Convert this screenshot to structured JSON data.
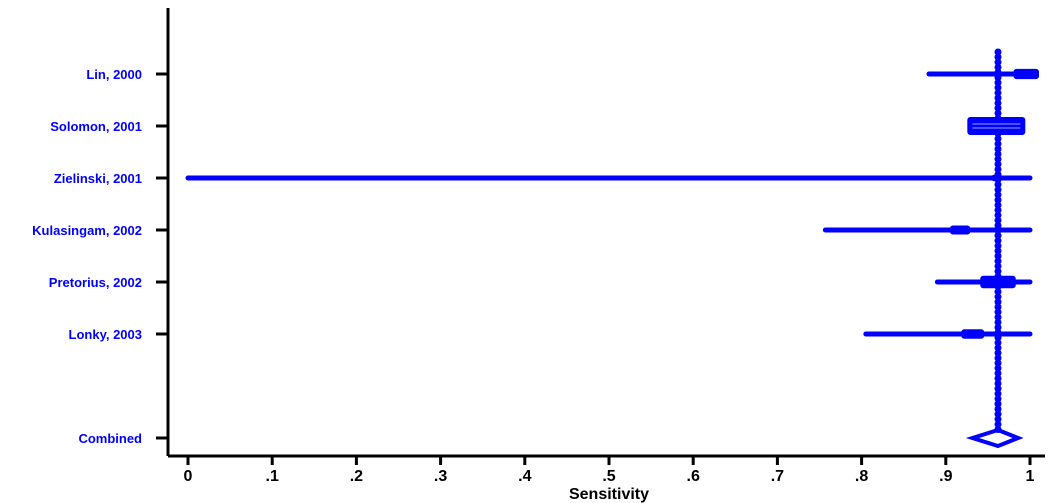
{
  "chart_data": {
    "type": "forest",
    "xlabel": "Sensitivity",
    "xlim": [
      0,
      1
    ],
    "x_ticks": [
      0,
      0.1,
      0.2,
      0.3,
      0.4,
      0.5,
      0.6,
      0.7,
      0.8,
      0.9,
      1
    ],
    "x_tick_labels": [
      "0",
      ".1",
      ".2",
      ".3",
      ".4",
      ".5",
      ".6",
      ".7",
      ".8",
      ".9",
      "1"
    ],
    "studies": [
      {
        "label": "Lin, 2000",
        "estimate": 1.0,
        "ci_low": 0.88,
        "ci_high": 1.0,
        "weight": 0.35
      },
      {
        "label": "Solomon, 2001",
        "estimate": 0.96,
        "ci_low": 0.935,
        "ci_high": 0.98,
        "weight": 1.0
      },
      {
        "label": "Zielinski, 2001",
        "estimate": 0.96,
        "ci_low": 0.0,
        "ci_high": 1.0,
        "weight": 0.05
      },
      {
        "label": "Kulasingam, 2002",
        "estimate": 0.917,
        "ci_low": 0.757,
        "ci_high": 1.0,
        "weight": 0.25
      },
      {
        "label": "Pretorius, 2002",
        "estimate": 0.962,
        "ci_low": 0.89,
        "ci_high": 1.0,
        "weight": 0.55
      },
      {
        "label": "Lonky, 2003",
        "estimate": 0.932,
        "ci_low": 0.805,
        "ci_high": 1.0,
        "weight": 0.3
      }
    ],
    "combined": {
      "label": "Combined",
      "estimate": 0.962,
      "ci_low": 0.94,
      "ci_high": 0.98
    },
    "reference_line": 0.962,
    "colors": {
      "marks": "#0000ff",
      "labels": "#0000ff",
      "axis": "#000000"
    }
  }
}
